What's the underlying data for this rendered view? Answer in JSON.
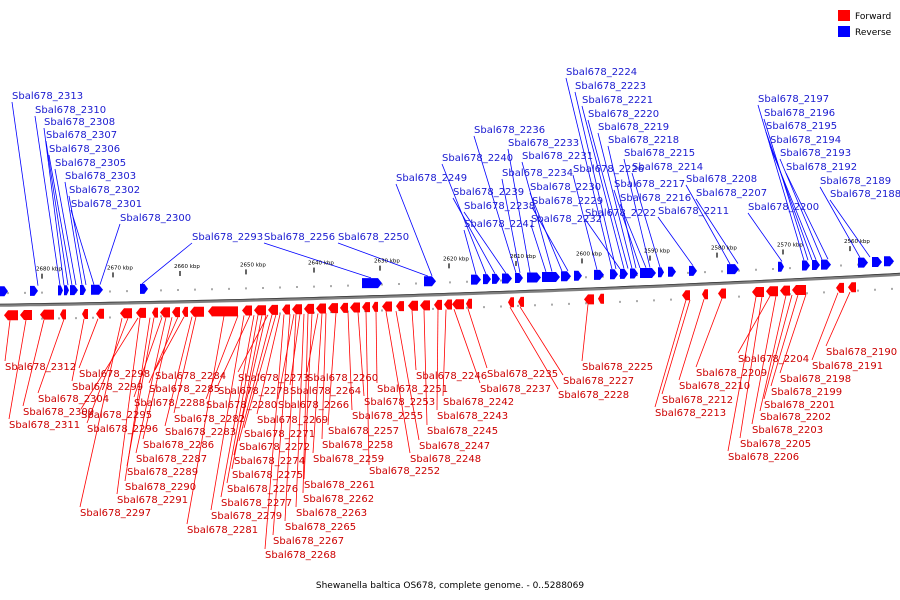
{
  "caption": "Shewanella baltica OS678, complete genome. - 0..5288069",
  "legend": [
    {
      "label": "Forward",
      "color": "#ff0000"
    },
    {
      "label": "Reverse",
      "color": "#0000ff"
    }
  ],
  "colors": {
    "forward": "#ff0000",
    "forward_label": "#cc0000",
    "reverse": "#0000ff",
    "reverse_label": "#1a1ad0",
    "backbone": "#808080"
  },
  "axis_ticks": [
    "2680 kbp",
    "2670 kbp",
    "2660 kbp",
    "2650 kbp",
    "2640 kbp",
    "2630 kbp",
    "2620 kbp",
    "2610 kbp",
    "2600 kbp",
    "2590 kbp",
    "2580 kbp",
    "2570 kbp",
    "2560 kbp"
  ],
  "reverse_genes": [
    "Sbal678_2313",
    "Sbal678_2310",
    "Sbal678_2308",
    "Sbal678_2307",
    "Sbal678_2306",
    "Sbal678_2305",
    "Sbal678_2303",
    "Sbal678_2302",
    "Sbal678_2301",
    "Sbal678_2300",
    "Sbal678_2293",
    "Sbal678_2256",
    "Sbal678_2250",
    "Sbal678_2249",
    "Sbal678_2241",
    "Sbal678_2240",
    "Sbal678_2239",
    "Sbal678_2238",
    "Sbal678_2236",
    "Sbal678_2234",
    "Sbal678_2233",
    "Sbal678_2232",
    "Sbal678_2231",
    "Sbal678_2230",
    "Sbal678_2229",
    "Sbal678_2226",
    "Sbal678_2224",
    "Sbal678_2223",
    "Sbal678_2222",
    "Sbal678_2221",
    "Sbal678_2220",
    "Sbal678_2219",
    "Sbal678_2218",
    "Sbal678_2217",
    "Sbal678_2216",
    "Sbal678_2215",
    "Sbal678_2214",
    "Sbal678_2211",
    "Sbal678_2208",
    "Sbal678_2207",
    "Sbal678_2200",
    "Sbal678_2197",
    "Sbal678_2196",
    "Sbal678_2195",
    "Sbal678_2194",
    "Sbal678_2193",
    "Sbal678_2192",
    "Sbal678_2189",
    "Sbal678_2188"
  ],
  "forward_genes": [
    "Sbal678_2312",
    "Sbal678_2311",
    "Sbal678_2309",
    "Sbal678_2304",
    "Sbal678_2299",
    "Sbal678_2298",
    "Sbal678_2297",
    "Sbal678_2296",
    "Sbal678_2295",
    "Sbal678_2291",
    "Sbal678_2290",
    "Sbal678_2289",
    "Sbal678_2288",
    "Sbal678_2287",
    "Sbal678_2286",
    "Sbal678_2285",
    "Sbal678_2284",
    "Sbal678_2283",
    "Sbal678_2282",
    "Sbal678_2281",
    "Sbal678_2280",
    "Sbal678_2279",
    "Sbal678_2278",
    "Sbal678_2277",
    "Sbal678_2276",
    "Sbal678_2275",
    "Sbal678_2274",
    "Sbal678_2273",
    "Sbal678_2272",
    "Sbal678_2271",
    "Sbal678_2269",
    "Sbal678_2268",
    "Sbal678_2267",
    "Sbal678_2266",
    "Sbal678_2265",
    "Sbal678_2264",
    "Sbal678_2263",
    "Sbal678_2262",
    "Sbal678_2261",
    "Sbal678_2260",
    "Sbal678_2259",
    "Sbal678_2258",
    "Sbal678_2257",
    "Sbal678_2255",
    "Sbal678_2253",
    "Sbal678_2252",
    "Sbal678_2251",
    "Sbal678_2248",
    "Sbal678_2247",
    "Sbal678_2246",
    "Sbal678_2245",
    "Sbal678_2243",
    "Sbal678_2242",
    "Sbal678_2237",
    "Sbal678_2235",
    "Sbal678_2228",
    "Sbal678_2227",
    "Sbal678_2225",
    "Sbal678_2213",
    "Sbal678_2212",
    "Sbal678_2210",
    "Sbal678_2209",
    "Sbal678_2206",
    "Sbal678_2205",
    "Sbal678_2204",
    "Sbal678_2203",
    "Sbal678_2202",
    "Sbal678_2201",
    "Sbal678_2199",
    "Sbal678_2198",
    "Sbal678_2191",
    "Sbal678_2190"
  ]
}
